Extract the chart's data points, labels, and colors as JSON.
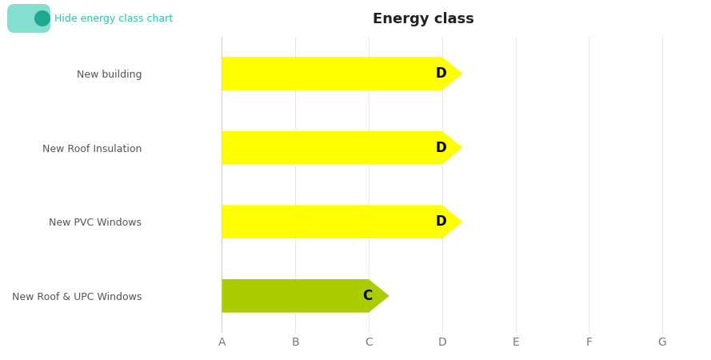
{
  "title": "Energy class",
  "categories": [
    "New building",
    "New Roof Insulation",
    "New PVC Windows",
    "New Roof & UPC Windows"
  ],
  "values": [
    4,
    4,
    4,
    3
  ],
  "labels": [
    "D",
    "D",
    "D",
    "C"
  ],
  "colors": [
    "#FFFF00",
    "#FFFF00",
    "#FFFF00",
    "#AACC00"
  ],
  "x_tick_labels": [
    "A",
    "B",
    "C",
    "D",
    "E",
    "F",
    "G"
  ],
  "x_tick_positions": [
    1,
    2,
    3,
    4,
    5,
    6,
    7
  ],
  "xlim": [
    0,
    7.5
  ],
  "background_color": "#ffffff",
  "toggle_text": "Hide energy class chart",
  "toggle_color": "#2BBFAD",
  "toggle_knob_color": "#1DA890",
  "title_fontsize": 13,
  "label_fontsize": 12,
  "tick_fontsize": 10,
  "category_fontsize": 9,
  "bar_height": 0.45,
  "arrow_overhang": 0.28
}
